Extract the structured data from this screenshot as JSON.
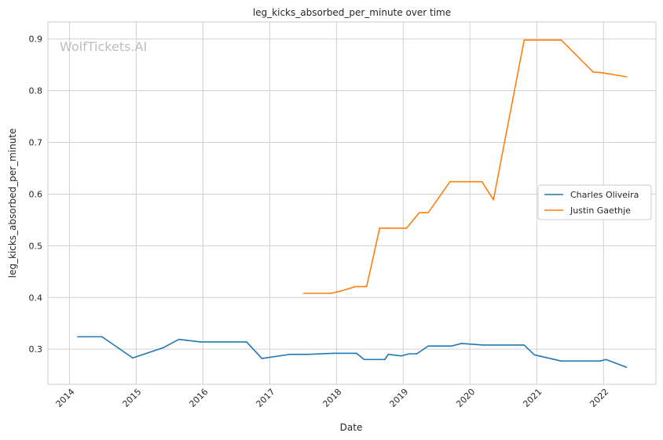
{
  "chart_data": {
    "type": "line",
    "title": "leg_kicks_absorbed_per_minute over time",
    "xlabel": "Date",
    "ylabel": "leg_kicks_absorbed_per_minute",
    "watermark": "WolfTickets.AI",
    "xlim": [
      "2013-09-05",
      "2022-10-15"
    ],
    "ylim": [
      0.232,
      0.933
    ],
    "x_ticks": [
      "2014",
      "2015",
      "2016",
      "2017",
      "2018",
      "2019",
      "2020",
      "2021",
      "2022"
    ],
    "y_ticks": [
      "0.3",
      "0.4",
      "0.5",
      "0.6",
      "0.7",
      "0.8",
      "0.9"
    ],
    "grid": true,
    "legend_position": "center-right",
    "series": [
      {
        "name": "Charles Oliveira",
        "color": "#1f77b4",
        "points": [
          [
            "2014-02-15",
            0.324
          ],
          [
            "2014-06-28",
            0.324
          ],
          [
            "2014-12-13",
            0.283
          ],
          [
            "2015-05-30",
            0.303
          ],
          [
            "2015-08-23",
            0.319
          ],
          [
            "2015-12-19",
            0.314
          ],
          [
            "2016-08-27",
            0.314
          ],
          [
            "2016-11-19",
            0.282
          ],
          [
            "2017-04-22",
            0.29
          ],
          [
            "2017-07-29",
            0.29
          ],
          [
            "2017-12-16",
            0.292
          ],
          [
            "2018-04-21",
            0.292
          ],
          [
            "2018-06-01",
            0.28
          ],
          [
            "2018-09-22",
            0.28
          ],
          [
            "2018-10-12",
            0.29
          ],
          [
            "2018-12-22",
            0.287
          ],
          [
            "2019-02-02",
            0.291
          ],
          [
            "2019-03-16",
            0.291
          ],
          [
            "2019-05-18",
            0.306
          ],
          [
            "2019-09-21",
            0.306
          ],
          [
            "2019-11-16",
            0.311
          ],
          [
            "2020-03-14",
            0.308
          ],
          [
            "2020-10-24",
            0.308
          ],
          [
            "2020-12-19",
            0.289
          ],
          [
            "2021-05-15",
            0.277
          ],
          [
            "2021-12-11",
            0.277
          ],
          [
            "2022-01-15",
            0.28
          ],
          [
            "2022-05-07",
            0.265
          ]
        ]
      },
      {
        "name": "Justin Gaethje",
        "color": "#ff7f0e",
        "points": [
          [
            "2017-07-07",
            0.408
          ],
          [
            "2017-12-02",
            0.408
          ],
          [
            "2018-01-30",
            0.413
          ],
          [
            "2018-04-14",
            0.421
          ],
          [
            "2018-06-15",
            0.421
          ],
          [
            "2018-08-25",
            0.534
          ],
          [
            "2019-01-19",
            0.534
          ],
          [
            "2019-03-30",
            0.564
          ],
          [
            "2019-05-18",
            0.564
          ],
          [
            "2019-09-14",
            0.624
          ],
          [
            "2020-03-07",
            0.624
          ],
          [
            "2020-05-09",
            0.589
          ],
          [
            "2020-10-24",
            0.898
          ],
          [
            "2021-05-15",
            0.898
          ],
          [
            "2021-11-06",
            0.836
          ],
          [
            "2021-12-18",
            0.835
          ],
          [
            "2022-05-07",
            0.827
          ]
        ]
      }
    ]
  }
}
